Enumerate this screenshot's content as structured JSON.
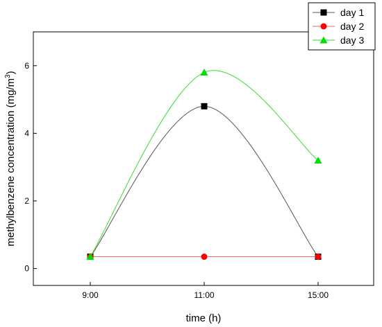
{
  "chart_data": {
    "type": "line",
    "categories": [
      "9:00",
      "11:00",
      "15:00"
    ],
    "xlabel": "time (h)",
    "ylabel": "methylbenzene concentration (mg/m",
    "ylabel_sup": "3",
    "ylabel_close": ")",
    "ylim": [
      -0.5,
      7
    ],
    "yticks": [
      0,
      2,
      4,
      6
    ],
    "grid": false,
    "legend_position": "top-right",
    "series": [
      {
        "name": "day 1",
        "values": [
          0.35,
          4.8,
          0.35
        ],
        "color": "#000000",
        "marker": "square",
        "line_color": "#555555"
      },
      {
        "name": "day 2",
        "values": [
          0.35,
          0.35,
          0.35
        ],
        "color": "#ff0000",
        "marker": "circle",
        "line_color": "#ff6666"
      },
      {
        "name": "day 3",
        "values": [
          0.35,
          5.8,
          3.2
        ],
        "color": "#00e000",
        "marker": "triangle",
        "line_color": "#33dd33"
      }
    ]
  }
}
